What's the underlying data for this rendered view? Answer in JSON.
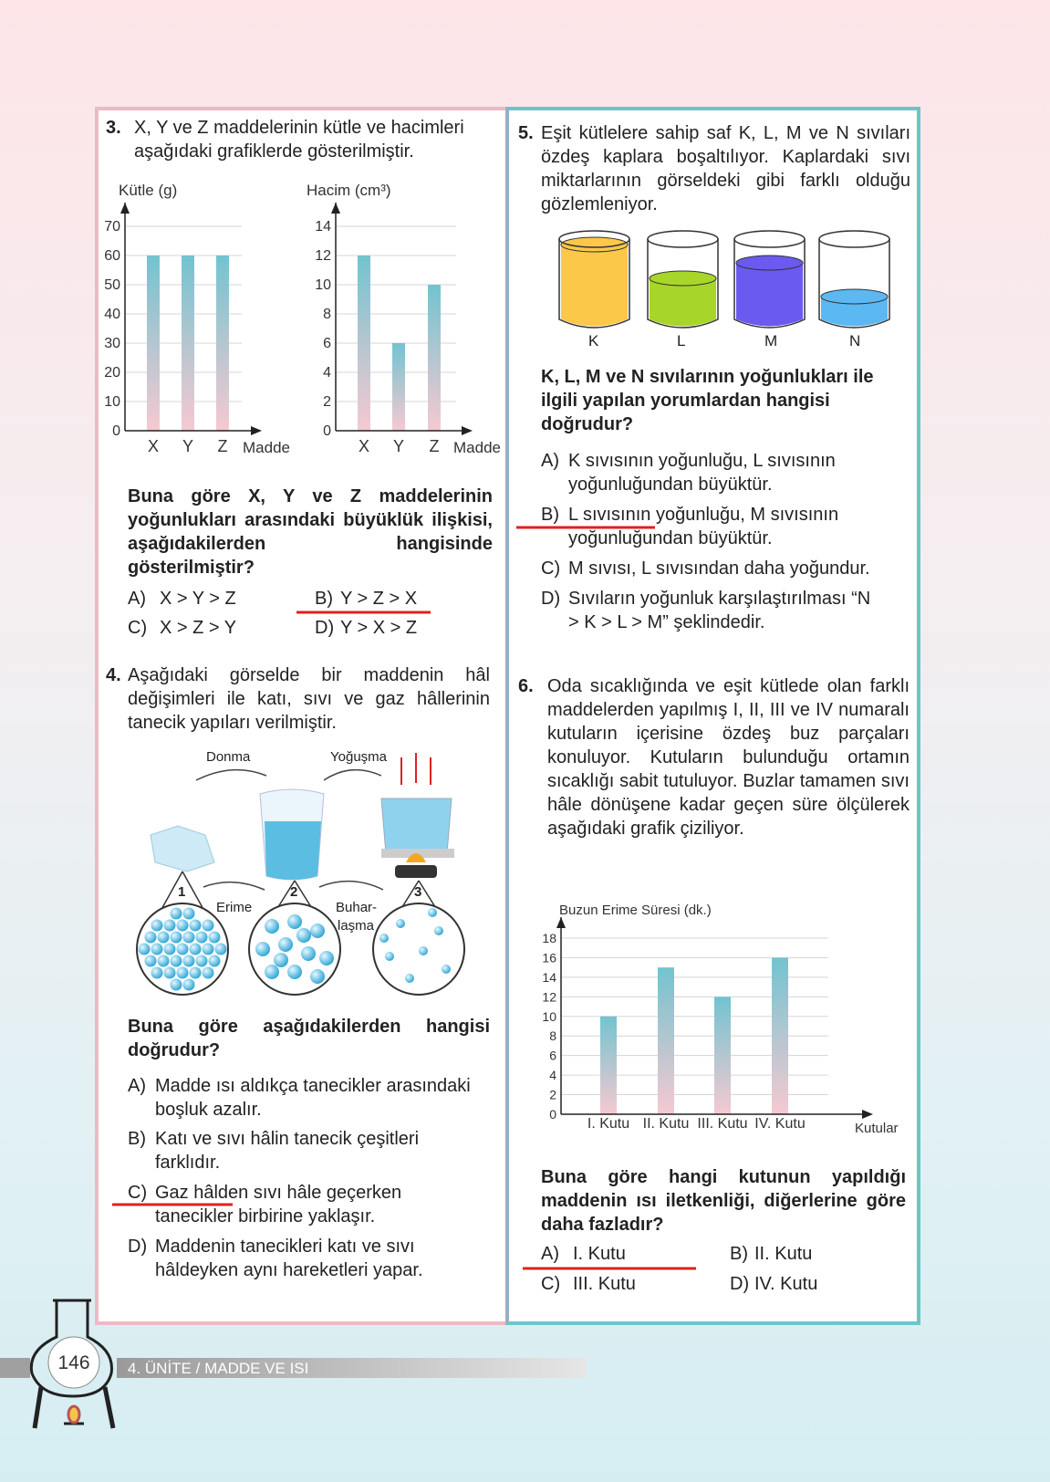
{
  "page_number": "146",
  "footer": "4. ÜNİTE / MADDE VE ISI",
  "questions": [
    {
      "number": "3.",
      "text": "X, Y ve Z maddelerinin kütle ve hacimleri aşağıdaki grafiklerde gösterilmiştir.",
      "charts": [
        {
          "type": "bar",
          "y_label": "Kütle (g)",
          "x_label": "Madde",
          "categories": [
            "X",
            "Y",
            "Z"
          ],
          "values": [
            60,
            60,
            60
          ],
          "ylim": [
            0,
            70
          ],
          "yticks": [
            0,
            10,
            20,
            30,
            40,
            50,
            60,
            70
          ],
          "grid": true
        },
        {
          "type": "bar",
          "y_label": "Hacim (cm³)",
          "x_label": "Madde",
          "categories": [
            "X",
            "Y",
            "Z"
          ],
          "values": [
            12,
            6,
            10
          ],
          "ylim": [
            0,
            14
          ],
          "yticks": [
            0,
            2,
            4,
            6,
            8,
            10,
            12,
            14
          ],
          "grid": true
        }
      ],
      "prompt": "Buna göre X, Y ve Z maddelerinin yoğunlukları arasındaki büyüklük ilişkisi, aşağıdakilerden hangisinde gösterilmiştir?",
      "options": [
        {
          "letter": "A)",
          "text": "X > Y > Z"
        },
        {
          "letter": "B)",
          "text": "Y > Z > X"
        },
        {
          "letter": "C)",
          "text": "X > Z > Y"
        },
        {
          "letter": "D)",
          "text": "Y > X > Z"
        }
      ]
    },
    {
      "number": "4.",
      "text": "Aşağıdaki görselde bir maddenin hâl değişimleri ile katı, sıvı ve gaz hâllerinin tanecik yapıları verilmiştir.",
      "diagram": {
        "labels": [
          "Donma",
          "Yoğuşma",
          "Erime",
          [
            "Buhar-",
            "laşma"
          ]
        ],
        "states": [
          "1",
          "2",
          "3"
        ]
      },
      "prompt": "Buna göre aşağıdakilerden hangisi doğrudur?",
      "options": [
        {
          "letter": "A)",
          "text": "Madde ısı aldıkça tanecikler arasındaki boşluk azalır."
        },
        {
          "letter": "B)",
          "text": "Katı ve sıvı hâlin tanecik çeşitleri farklıdır."
        },
        {
          "letter": "C)",
          "text": "Gaz hâlden sıvı hâle geçerken tanecikler birbirine yaklaşır."
        },
        {
          "letter": "D)",
          "text": "Maddenin tanecikleri katı ve sıvı hâldeyken aynı hareketleri yapar."
        }
      ]
    },
    {
      "number": "5.",
      "text": "Eşit kütlelere sahip saf K, L, M ve N sıvıları özdeş kaplara boşaltılıyor. Kaplardaki sıvı miktarlarının görseldeki gibi farklı olduğu gözlemleniyor.",
      "containers": [
        "K",
        "L",
        "M",
        "N"
      ],
      "prompt": "K, L, M ve N sıvılarının yoğunlukları ile ilgili yapılan yorumlardan hangisi doğrudur?",
      "options": [
        {
          "letter": "A)",
          "text": "K sıvısının yoğunluğu, L sıvısının yoğunluğundan büyüktür."
        },
        {
          "letter": "B)",
          "text": "L sıvısının yoğunluğu, M sıvısının yoğunluğundan büyüktür."
        },
        {
          "letter": "C)",
          "text": "M sıvısı, L sıvısından daha yoğundur."
        },
        {
          "letter": "D)",
          "text": "Sıvıların yoğunluk karşılaştırılması “N > K > L > M” şeklindedir."
        }
      ]
    },
    {
      "number": "6.",
      "text": "Oda sıcaklığında ve eşit kütlede olan farklı maddelerden yapılmış I, II, III ve IV numaralı kutuların içerisine özdeş buz parçaları konuluyor. Kutuların bulunduğu ortamın sıcaklığı sabit tutuluyor. Buzlar tamamen sıvı hâle dönüşene kadar geçen süre ölçülerek aşağıdaki grafik çiziliyor.",
      "charts": [
        {
          "type": "bar",
          "y_label": "Buzun Erime Süresi (dk.)",
          "x_label": "Kutular",
          "categories": [
            "I. Kutu",
            "II. Kutu",
            "III. Kutu",
            "IV. Kutu"
          ],
          "values": [
            10,
            15,
            12,
            16
          ],
          "ylim": [
            0,
            18
          ],
          "yticks": [
            0,
            2,
            4,
            6,
            8,
            10,
            12,
            14,
            16,
            18
          ],
          "grid": true
        }
      ],
      "prompt": "Buna göre hangi kutunun yapıldığı maddenin ısı iletkenliği, diğerlerine göre daha fazladır?",
      "options": [
        {
          "letter": "A)",
          "text": "I. Kutu"
        },
        {
          "letter": "B)",
          "text": "II. Kutu"
        },
        {
          "letter": "C)",
          "text": "III. Kutu"
        },
        {
          "letter": "D)",
          "text": "IV. Kutu"
        }
      ]
    }
  ]
}
